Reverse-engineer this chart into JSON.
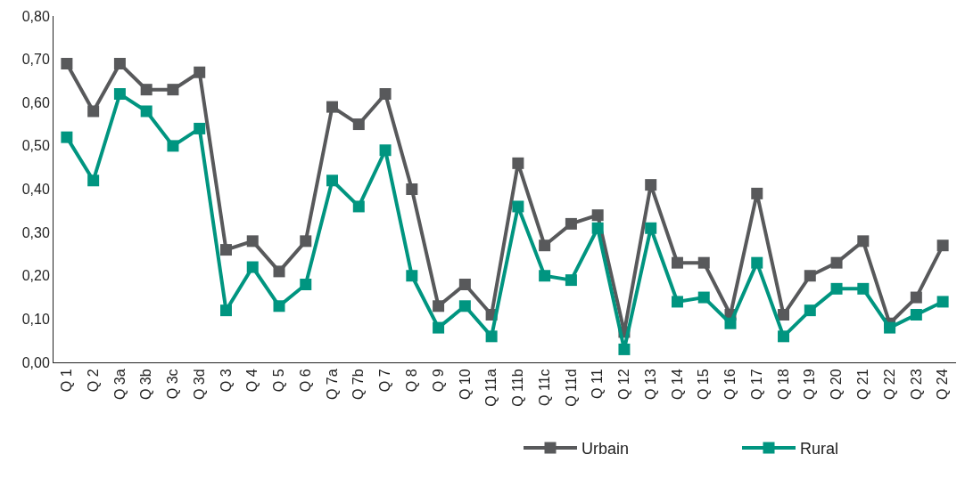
{
  "chart_data": {
    "type": "line",
    "categories": [
      "Q 1",
      "Q 2",
      "Q 3a",
      "Q 3b",
      "Q 3c",
      "Q 3d",
      "Q 3",
      "Q 4",
      "Q 5",
      "Q 6",
      "Q 7a",
      "Q 7b",
      "Q 7",
      "Q 8",
      "Q 9",
      "Q 10",
      "Q 11a",
      "Q 11b",
      "Q 11c",
      "Q 11d",
      "Q 11",
      "Q 12",
      "Q 13",
      "Q 14",
      "Q 15",
      "Q 16",
      "Q 17",
      "Q 18",
      "Q 19",
      "Q 20",
      "Q 21",
      "Q 22",
      "Q 23",
      "Q 24"
    ],
    "series": [
      {
        "name": "Urbain",
        "color": "#58595b",
        "values": [
          0.69,
          0.58,
          0.69,
          0.63,
          0.63,
          0.67,
          0.26,
          0.28,
          0.21,
          0.28,
          0.59,
          0.55,
          0.62,
          0.4,
          0.13,
          0.18,
          0.11,
          0.46,
          0.27,
          0.32,
          0.34,
          0.07,
          0.41,
          0.23,
          0.23,
          0.11,
          0.39,
          0.11,
          0.2,
          0.23,
          0.28,
          0.09,
          0.15,
          0.27
        ]
      },
      {
        "name": "Rural",
        "color": "#009580",
        "values": [
          0.52,
          0.42,
          0.62,
          0.58,
          0.5,
          0.54,
          0.12,
          0.22,
          0.13,
          0.18,
          0.42,
          0.36,
          0.49,
          0.2,
          0.08,
          0.13,
          0.06,
          0.36,
          0.2,
          0.19,
          0.31,
          0.03,
          0.31,
          0.14,
          0.15,
          0.09,
          0.23,
          0.06,
          0.12,
          0.17,
          0.17,
          0.08,
          0.11,
          0.14
        ]
      }
    ],
    "ylim": [
      0,
      0.8
    ],
    "yticks": [
      {
        "value": 0,
        "label": "0,00"
      },
      {
        "value": 0.1,
        "label": "0,10"
      },
      {
        "value": 0.2,
        "label": "0,20"
      },
      {
        "value": 0.3,
        "label": "0,30"
      },
      {
        "value": 0.4,
        "label": "0,40"
      },
      {
        "value": 0.5,
        "label": "0,50"
      },
      {
        "value": 0.6,
        "label": "0,60"
      },
      {
        "value": 0.7,
        "label": "0,70"
      },
      {
        "value": 0.8,
        "label": "0,80"
      }
    ],
    "legend": "bottom right",
    "marker": "square",
    "line_style": "solid"
  }
}
